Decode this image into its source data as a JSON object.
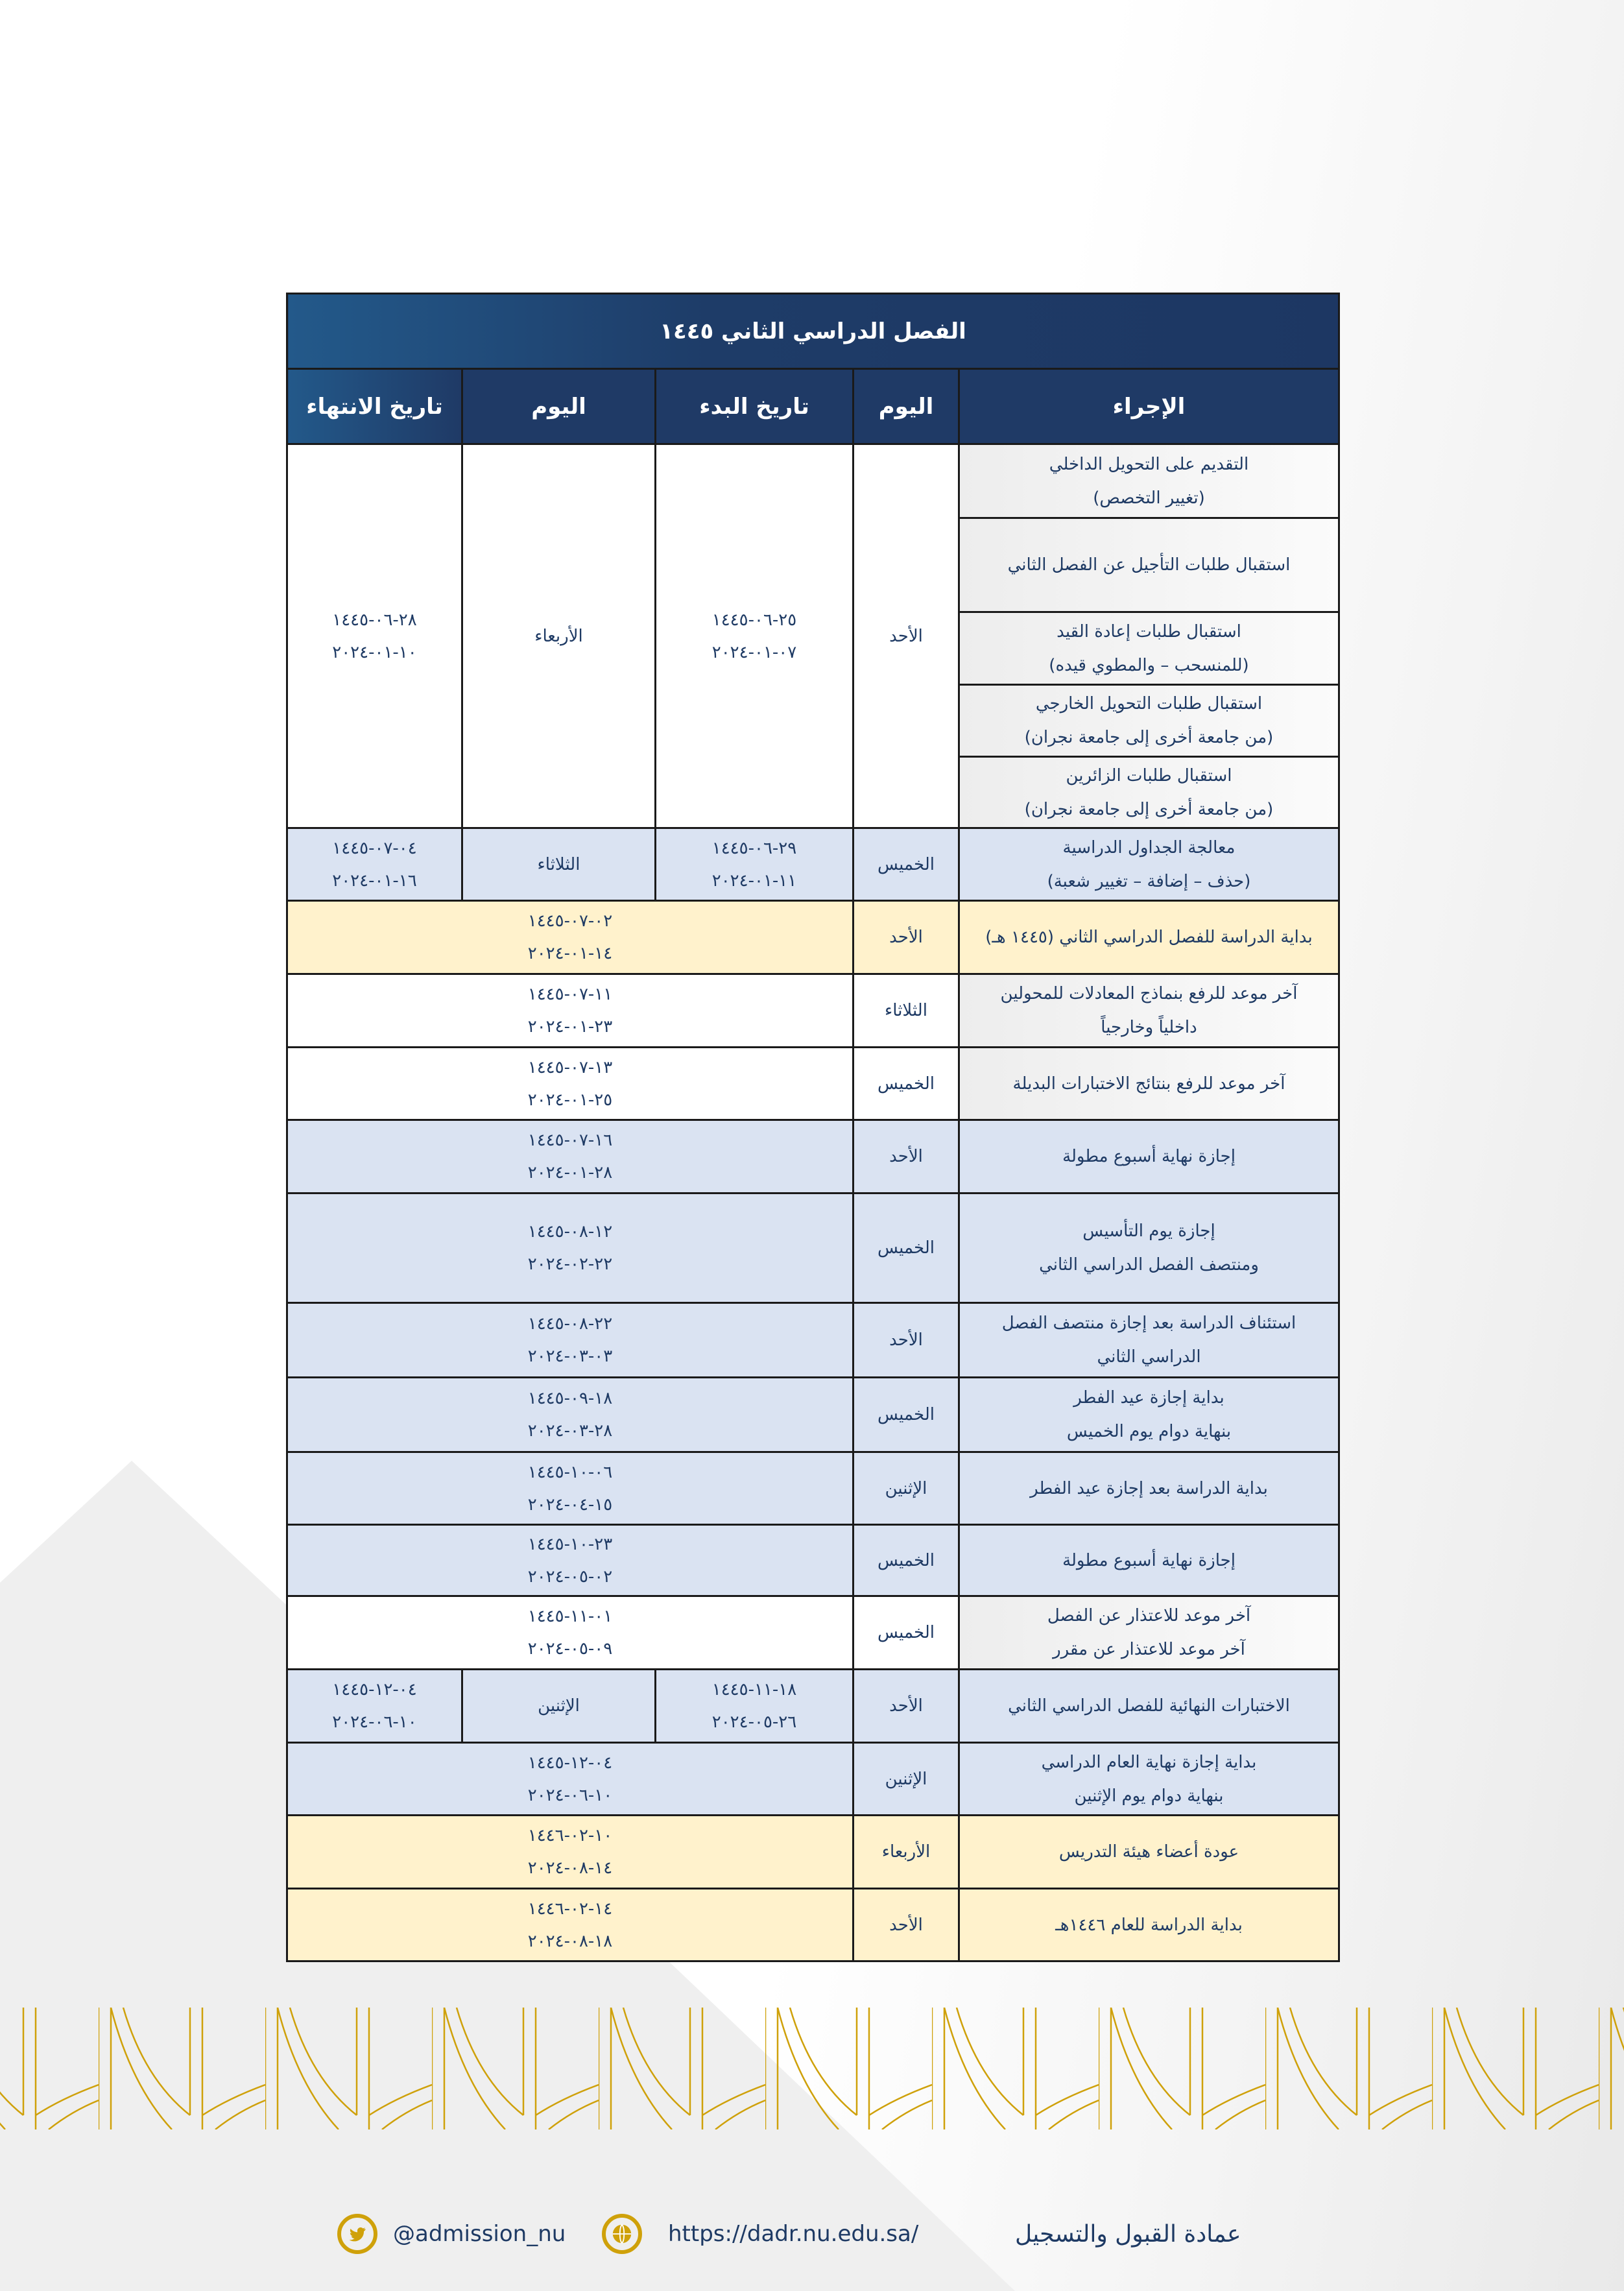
{
  "title": "الفصل الدراسي الثاني ١٤٤٥",
  "headers": [
    "الإجراء",
    "اليوم",
    "تاريخ البدء",
    "اليوم",
    "تاريخ الانتهاء"
  ],
  "group1": {
    "actions": [
      [
        "التقديم على التحويل الداخلي",
        "(تغيير التخصص)"
      ],
      [
        "استقبال طلبات التأجيل عن الفصل الثاني"
      ],
      [
        "استقبال طلبات إعادة القيد",
        "(للمنسحب – والمطوي قيده)"
      ],
      [
        "استقبال طلبات التحويل الخارجي",
        "(من جامعة أخرى إلى جامعة نجران)"
      ],
      [
        "استقبال طلبات الزائرين",
        "(من جامعة أخرى إلى جامعة نجران)"
      ]
    ],
    "start_day": "الأحد",
    "start_date": [
      "١٤٤٥-٠٦-٢٥",
      "٢٠٢٤-٠١-٠٧"
    ],
    "end_day": "الأربعاء",
    "end_date": [
      "١٤٤٥-٠٦-٢٨",
      "٢٠٢٤-٠١-١٠"
    ]
  },
  "rows": [
    {
      "style": "blue",
      "action": [
        "معالجة الجداول الدراسية",
        "(حذف – إضافة – تغيير شعبة)"
      ],
      "day": "الخميس",
      "start": [
        "١٤٤٥-٠٦-٢٩",
        "٢٠٢٤-٠١-١١"
      ],
      "end_day": "الثلاثاء",
      "end": [
        "١٤٤٥-٠٧-٠٤",
        "٢٠٢٤-٠١-١٦"
      ]
    },
    {
      "style": "yellow",
      "action": [
        "بداية الدراسة للفصل الدراسي الثاني (١٤٤٥ هـ)"
      ],
      "day": "الأحد",
      "date": [
        "١٤٤٥-٠٧-٠٢",
        "٢٠٢٤-٠١-١٤"
      ]
    },
    {
      "style": "white",
      "action": [
        "آخر موعد للرفع بنماذج المعادلات للمحولين",
        "داخلياً وخارجياً"
      ],
      "day": "الثلاثاء",
      "date": [
        "١٤٤٥-٠٧-١١",
        "٢٠٢٤-٠١-٢٣"
      ]
    },
    {
      "style": "white",
      "action": [
        "آخر موعد للرفع بنتائج الاختبارات البديلة"
      ],
      "day": "الخميس",
      "date": [
        "١٤٤٥-٠٧-١٣",
        "٢٠٢٤-٠١-٢٥"
      ]
    },
    {
      "style": "blue",
      "action": [
        "إجازة نهاية أسبوع مطولة"
      ],
      "day": "الأحد",
      "date": [
        "١٤٤٥-٠٧-١٦",
        "٢٠٢٤-٠١-٢٨"
      ]
    },
    {
      "style": "blue",
      "action": [
        "إجازة يوم التأسيس",
        "ومنتصف الفصل الدراسي الثاني"
      ],
      "day": "الخميس",
      "date": [
        "١٤٤٥-٠٨-١٢",
        "٢٠٢٤-٠٢-٢٢"
      ]
    },
    {
      "style": "blue",
      "action": [
        "استئناف الدراسة بعد إجازة منتصف الفصل",
        "الدراسي الثاني"
      ],
      "day": "الأحد",
      "date": [
        "١٤٤٥-٠٨-٢٢",
        "٢٠٢٤-٠٣-٠٣"
      ]
    },
    {
      "style": "blue",
      "action": [
        "بداية إجازة عيد الفطر",
        "بنهاية دوام يوم الخميس"
      ],
      "day": "الخميس",
      "date": [
        "١٤٤٥-٠٩-١٨",
        "٢٠٢٤-٠٣-٢٨"
      ]
    },
    {
      "style": "blue",
      "action": [
        "بداية الدراسة بعد إجازة عيد الفطر"
      ],
      "day": "الإثنين",
      "date": [
        "١٤٤٥-١٠-٠٦",
        "٢٠٢٤-٠٤-١٥"
      ]
    },
    {
      "style": "blue",
      "action": [
        "إجازة نهاية أسبوع مطولة"
      ],
      "day": "الخميس",
      "date": [
        "١٤٤٥-١٠-٢٣",
        "٢٠٢٤-٠٥-٠٢"
      ]
    },
    {
      "style": "white",
      "action": [
        "آخر موعد للاعتذار عن الفصل",
        "آخر موعد للاعتذار عن مقرر"
      ],
      "day": "الخميس",
      "date": [
        "١٤٤٥-١١-٠١",
        "٢٠٢٤-٠٥-٠٩"
      ]
    },
    {
      "style": "blue",
      "action": [
        "الاختبارات النهائية للفصل الدراسي الثاني"
      ],
      "day": "الأحد",
      "start": [
        "١٤٤٥-١١-١٨",
        "٢٠٢٤-٠٥-٢٦"
      ],
      "end_day": "الإثنين",
      "end": [
        "١٤٤٥-١٢-٠٤",
        "٢٠٢٤-٠٦-١٠"
      ]
    },
    {
      "style": "blue",
      "action": [
        "بداية إجازة نهاية العام الدراسي",
        "بنهاية دوام يوم الإثنين"
      ],
      "day": "الإثنين",
      "date": [
        "١٤٤٥-١٢-٠٤",
        "٢٠٢٤-٠٦-١٠"
      ]
    },
    {
      "style": "yellow",
      "action": [
        "عودة أعضاء هيئة التدريس"
      ],
      "day": "الأربعاء",
      "date": [
        "١٤٤٦-٠٢-١٠",
        "٢٠٢٤-٠٨-١٤"
      ]
    },
    {
      "style": "yellow",
      "action": [
        "بداية الدراسة للعام ١٤٤٦هـ"
      ],
      "day": "الأحد",
      "date": [
        "١٤٤٦-٠٢-١٤",
        "٢٠٢٤-٠٨-١٨"
      ]
    }
  ],
  "footer": {
    "twitter": "@admission_nu",
    "website": "https://dadr.nu.edu.sa/",
    "department": "عمادة القبول والتسجيل",
    "icons": [
      "twitter-icon",
      "globe-icon"
    ]
  },
  "colors": {
    "navy": "#1f3a66",
    "light_blue": "#dae3f2",
    "yellow": "#fff2cc",
    "gold": "#cfa10a"
  }
}
